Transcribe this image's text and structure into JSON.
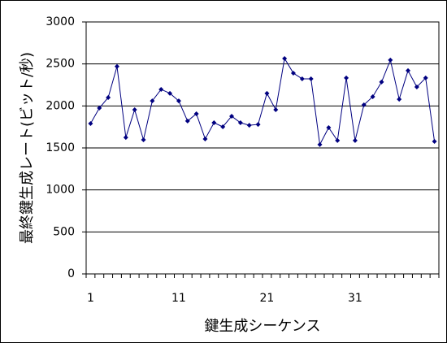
{
  "chart_data": {
    "type": "line",
    "x_label": "鍵生成シーケンス",
    "y_label": "最終鍵生成レート(ビット/秒)",
    "categories": [
      "1",
      null,
      null,
      null,
      null,
      null,
      null,
      null,
      null,
      null,
      "11",
      null,
      null,
      null,
      null,
      null,
      null,
      null,
      null,
      null,
      "21",
      null,
      null,
      null,
      null,
      null,
      null,
      null,
      null,
      null,
      "31",
      null,
      null,
      null,
      null,
      null,
      null,
      null,
      null,
      null
    ],
    "values": [
      1790,
      1975,
      2100,
      2470,
      1625,
      1955,
      1597,
      2060,
      2197,
      2150,
      2060,
      1820,
      1907,
      1607,
      1800,
      1752,
      1878,
      1800,
      1770,
      1780,
      2150,
      1955,
      2565,
      2390,
      2323,
      2323,
      1540,
      1742,
      1588,
      2333,
      1588,
      2013,
      2110,
      2285,
      2546,
      2080,
      2420,
      2226,
      2333,
      1578
    ],
    "color": "#000080",
    "ylim": [
      0,
      3000
    ],
    "yticks": [
      0,
      500,
      1000,
      1500,
      2000,
      2500,
      3000
    ],
    "grid": true
  }
}
